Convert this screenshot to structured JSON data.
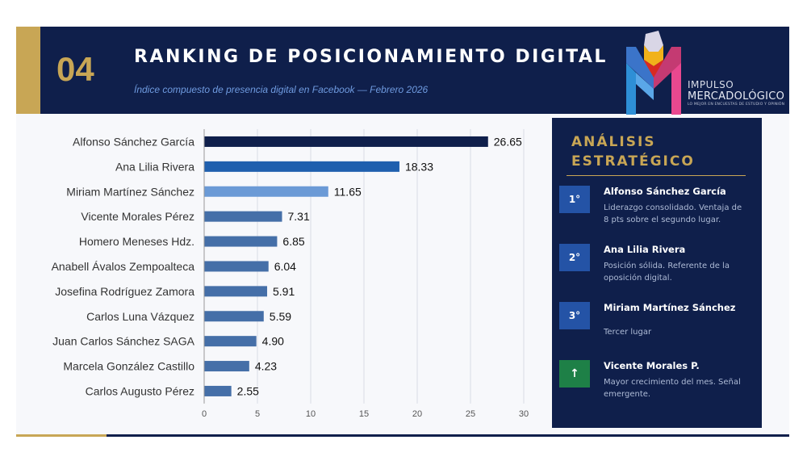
{
  "header": {
    "number": "04",
    "title": "RANKING DE POSICIONAMIENTO DIGITAL",
    "subtitle": "Índice compuesto de presencia digital en Facebook — Febrero 2026"
  },
  "logo": {
    "line1": "IMPULSO",
    "line2": "MERCADOLÓGICO",
    "tagline": "LO MEJOR EN ENCUESTAS DE ESTUDIO Y OPINIÓN"
  },
  "colors": {
    "navy": "#0f1f4b",
    "gold": "#c8a655",
    "bar_top": "#0f1f4b",
    "bar_second": "#1f5fae",
    "bar_third": "#6b9ad6",
    "bar_rest": "#456fa8",
    "badge_blue": "#2453a6",
    "badge_green": "#1e8047"
  },
  "chart_data": {
    "type": "bar",
    "orientation": "horizontal",
    "categories": [
      "Alfonso Sánchez García",
      "Ana Lilia Rivera",
      "Miriam Martínez Sánchez",
      "Vicente Morales Pérez",
      "Homero Meneses Hdz.",
      "Anabell Ávalos Zempoalteca",
      "Josefina Rodríguez Zamora",
      "Carlos Luna Vázquez",
      "Juan Carlos Sánchez SAGA",
      "Marcela González Castillo",
      "Carlos Augusto Pérez"
    ],
    "values": [
      26.65,
      18.33,
      11.65,
      7.31,
      6.85,
      6.04,
      5.91,
      5.59,
      4.9,
      4.23,
      2.55
    ],
    "value_labels": [
      "26.65",
      "18.33",
      "11.65",
      "7.31",
      "6.85",
      "6.04",
      "5.91",
      "5.59",
      "4.90",
      "4.23",
      "2.55"
    ],
    "xlim": [
      0,
      30
    ],
    "xticks": [
      "0",
      "5",
      "10",
      "15",
      "20",
      "25",
      "30"
    ],
    "grid": true,
    "title": "",
    "xlabel": "",
    "ylabel": ""
  },
  "panel": {
    "title_line1": "ANÁLISIS",
    "title_line2": "ESTRATÉGICO",
    "items": [
      {
        "badge": "1°",
        "name": "Alfonso Sánchez García",
        "desc": "Liderazgo consolidado. Ventaja de 8 pts sobre el segundo lugar."
      },
      {
        "badge": "2°",
        "name": "Ana Lilia Rivera",
        "desc": "Posición sólida. Referente de la oposición digital."
      },
      {
        "badge": "3°",
        "name": "Miriam Martínez Sánchez",
        "desc": "Tercer lugar"
      },
      {
        "badge": "↑",
        "name": "Vicente Morales P.",
        "desc": "Mayor crecimiento del mes. Señal emergente."
      }
    ]
  }
}
